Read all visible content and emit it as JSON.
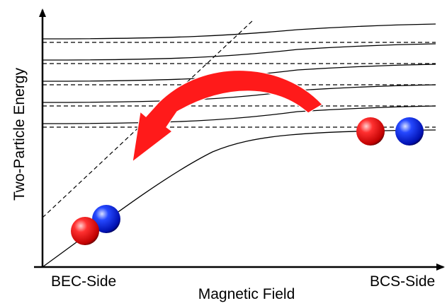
{
  "axes": {
    "y_label": "Two-Particle Energy",
    "x_label": "Magnetic Field",
    "left_end_label": "BEC-Side",
    "right_end_label": "BCS-Side"
  },
  "levels": {
    "count": 5
  },
  "colors": {
    "axis": "#000000",
    "solid_curve": "#000000",
    "dashed_line": "#000000",
    "arrow": "#ff1a1a",
    "particle_red": "#ff2a2a",
    "particle_blue": "#1f3cff"
  },
  "icons": {
    "bound_pair": "red-and-blue-sphere-molecule-icon",
    "free_pair": "separated-red-and-blue-sphere-icon",
    "transition_arrow": "curved-red-arrow-icon"
  }
}
